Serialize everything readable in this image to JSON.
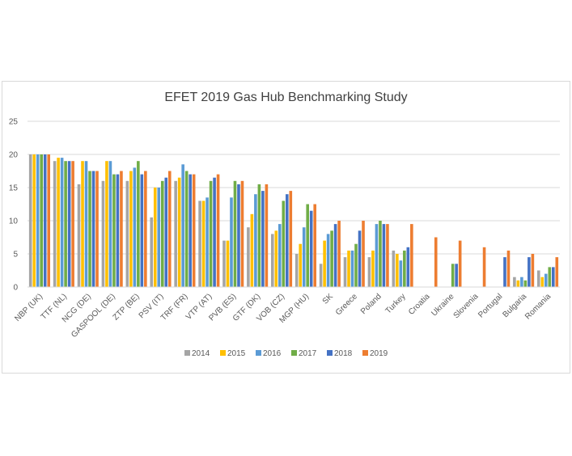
{
  "chart_data": {
    "type": "bar",
    "title": "EFET 2019 Gas Hub Benchmarking Study",
    "xlabel": "",
    "ylabel": "",
    "ylim": [
      0,
      25
    ],
    "yticks": [
      0,
      5,
      10,
      15,
      20,
      25
    ],
    "grid": true,
    "legend_position": "bottom",
    "categories": [
      "NBP (UK)",
      "TTF (NL)",
      "NCG (DE)",
      "GASPOOL (DE)",
      "ZTP (BE)",
      "PSV (IT)",
      "TRF (FR)",
      "VTP (AT)",
      "PVB (ES)",
      "GTF (DK)",
      "VOB (CZ)",
      "MGP (HU)",
      "SK",
      "Greece",
      "Poland",
      "Turkey",
      "Croatia",
      "Ukraine",
      "Slovenia",
      "Portugal",
      "Bulgaria",
      "Romania"
    ],
    "series": [
      {
        "name": "2014",
        "color": "#a5a5a5",
        "values": [
          20,
          19,
          15.5,
          16,
          16,
          10.5,
          16,
          13,
          7,
          9,
          8,
          5,
          3.5,
          4.5,
          4.5,
          5.5,
          null,
          null,
          null,
          null,
          1.5,
          2.5
        ]
      },
      {
        "name": "2015",
        "color": "#ffc000",
        "values": [
          20,
          19.5,
          19,
          19,
          17.5,
          15,
          16.5,
          13,
          7,
          11,
          8.5,
          6.5,
          7,
          5.5,
          5.5,
          5,
          null,
          null,
          null,
          null,
          1,
          1.5
        ]
      },
      {
        "name": "2016",
        "color": "#5b9bd5",
        "values": [
          20,
          19.5,
          19,
          19,
          18,
          15,
          18.5,
          13.5,
          13.5,
          14,
          9.5,
          9,
          8,
          5.5,
          9.5,
          4,
          null,
          null,
          null,
          null,
          1.5,
          2
        ]
      },
      {
        "name": "2017",
        "color": "#70ad47",
        "values": [
          20,
          19,
          17.5,
          17,
          19,
          16,
          17.5,
          16,
          16,
          15.5,
          13,
          12.5,
          8.5,
          6.5,
          10,
          5.5,
          null,
          3.5,
          null,
          null,
          1,
          3
        ]
      },
      {
        "name": "2018",
        "color": "#4472c4",
        "values": [
          20,
          19,
          17.5,
          17,
          17,
          16.5,
          17,
          16.5,
          15.5,
          14.5,
          14,
          11.5,
          9.5,
          8.5,
          9.5,
          6,
          null,
          3.5,
          null,
          4.5,
          4.5,
          3
        ]
      },
      {
        "name": "2019",
        "color": "#ed7d31",
        "values": [
          20,
          19,
          17.5,
          17.5,
          17.5,
          17.5,
          17,
          17,
          16,
          15.5,
          14.5,
          12.5,
          10,
          10,
          9.5,
          9.5,
          7.5,
          7,
          6,
          5.5,
          5,
          4.5
        ]
      }
    ]
  }
}
